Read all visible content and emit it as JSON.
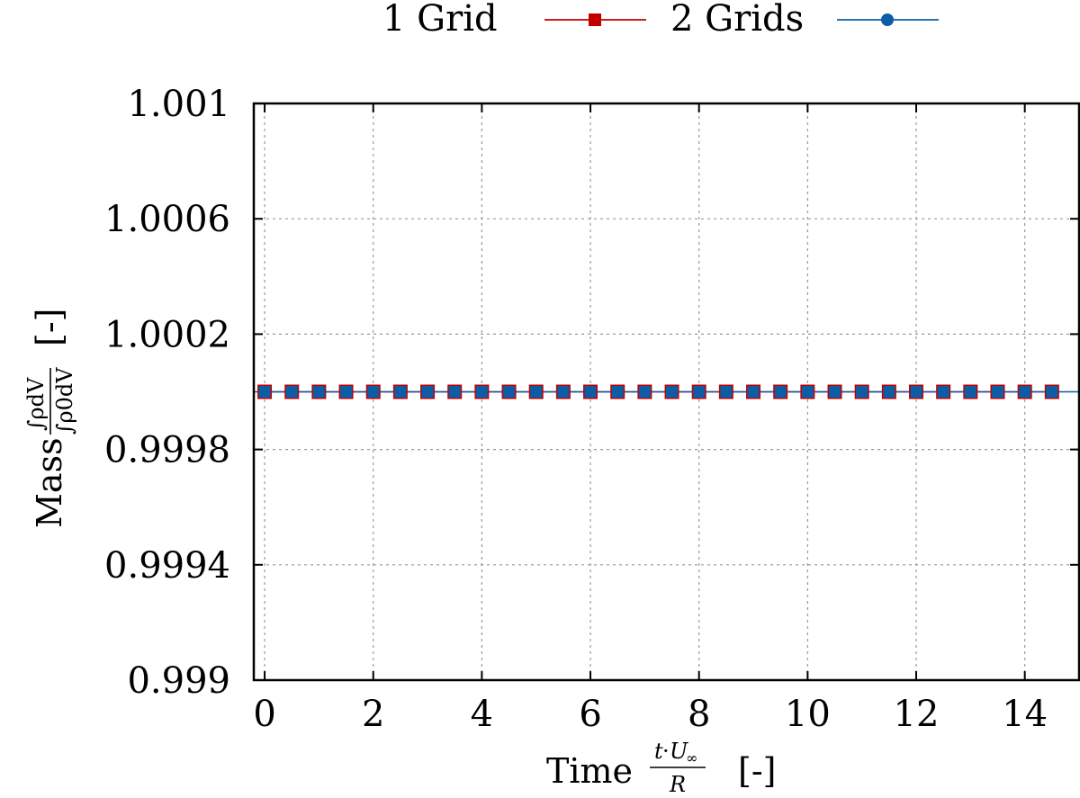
{
  "chart_data": {
    "type": "line",
    "x": [
      0,
      0.5,
      1,
      1.5,
      2,
      2.5,
      3,
      3.5,
      4,
      4.5,
      5,
      5.5,
      6,
      6.5,
      7,
      7.5,
      8,
      8.5,
      9,
      9.5,
      10,
      10.5,
      11,
      11.5,
      12,
      12.5,
      13,
      13.5,
      14,
      14.5
    ],
    "series": [
      {
        "name": "1 Grid",
        "color": "#c00000",
        "marker": "square",
        "values": [
          1.0,
          1.0,
          1.0,
          1.0,
          1.0,
          1.0,
          1.0,
          1.0,
          1.0,
          1.0,
          1.0,
          1.0,
          1.0,
          1.0,
          1.0,
          1.0,
          1.0,
          1.0,
          1.0,
          1.0,
          1.0,
          1.0,
          1.0,
          1.0,
          1.0,
          1.0,
          1.0,
          1.0,
          1.0,
          1.0
        ]
      },
      {
        "name": "2 Grids",
        "color": "#0c5da5",
        "marker": "circle",
        "values": [
          1.0,
          1.0,
          1.0,
          1.0,
          1.0,
          1.0,
          1.0,
          1.0,
          1.0,
          1.0,
          1.0,
          1.0,
          1.0,
          1.0,
          1.0,
          1.0,
          1.0,
          1.0,
          1.0,
          1.0,
          1.0,
          1.0,
          1.0,
          1.0,
          1.0,
          1.0,
          1.0,
          1.0,
          1.0,
          1.0
        ]
      }
    ],
    "xlim": [
      -0.2,
      15
    ],
    "ylim": [
      0.999,
      1.001
    ],
    "xticks": [
      0,
      2,
      4,
      6,
      8,
      10,
      12,
      14
    ],
    "xtick_labels": [
      "0",
      "2",
      "4",
      "6",
      "8",
      "10",
      "12",
      "14"
    ],
    "yticks": [
      0.999,
      0.9994,
      0.9998,
      1.0002,
      1.0006,
      1.001
    ],
    "ytick_labels": [
      "0.999",
      "0.9994",
      "0.9998",
      "1.0002",
      "1.0006",
      "1.001"
    ],
    "grid": true,
    "legend_position": "top",
    "xlabel": {
      "word": "Time",
      "num_t": "t",
      "num_dot": "·",
      "num_U": "U",
      "num_sub": "∞",
      "den": "R",
      "unit": "[-]"
    },
    "ylabel": {
      "word": "Mass",
      "num": "∫ρdV",
      "den": "∫ρ0dV",
      "unit": "[-]"
    }
  }
}
